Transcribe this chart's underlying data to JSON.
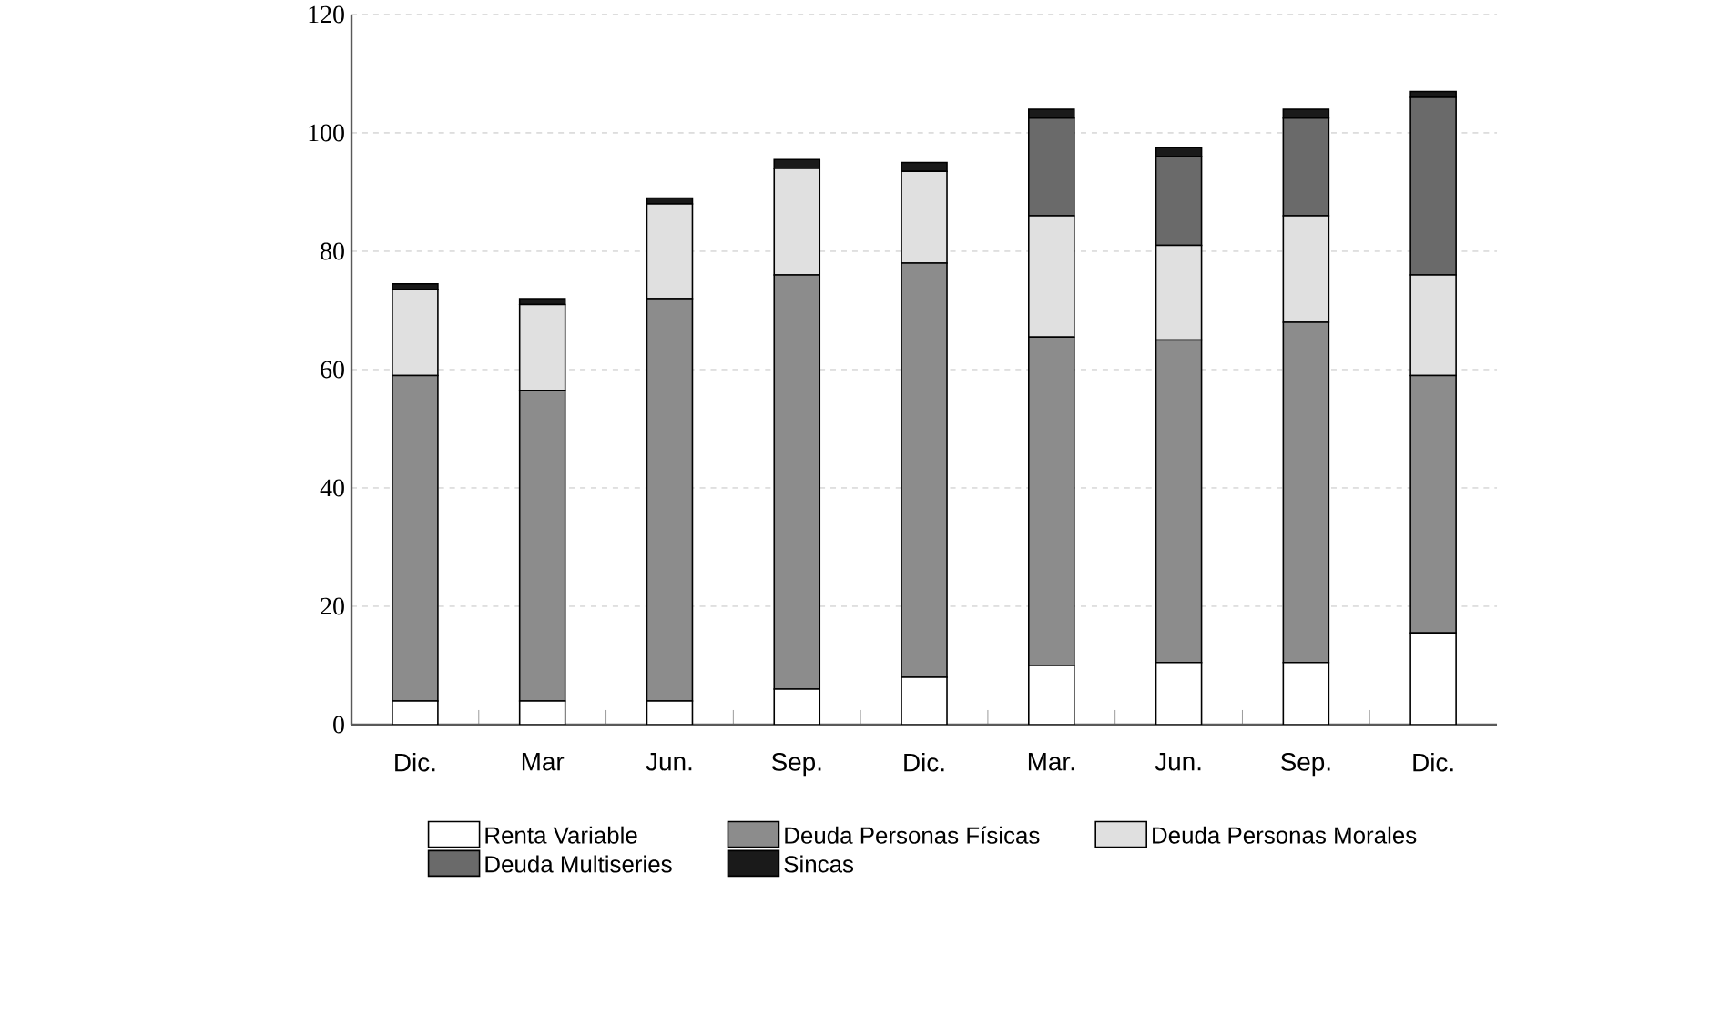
{
  "chart_data": {
    "type": "bar",
    "stacked": true,
    "categories": [
      "Dic.",
      "Mar",
      "Jun.",
      "Sep.",
      "Dic.",
      "Mar.",
      "Jun.",
      "Sep.",
      "Dic."
    ],
    "series": [
      {
        "name": "Renta Variable",
        "color": "#ffffff",
        "values": [
          4,
          4,
          4,
          6,
          8,
          10,
          10.5,
          10.5,
          15.5
        ]
      },
      {
        "name": "Deuda Personas Físicas",
        "color": "#8c8c8c",
        "values": [
          55,
          52.5,
          68,
          70,
          70,
          55.5,
          54.5,
          57.5,
          43.5
        ]
      },
      {
        "name": "Deuda Personas Morales",
        "color": "#e0e0e0",
        "values": [
          14.5,
          14.5,
          16,
          18,
          15.5,
          20.5,
          16,
          18,
          17
        ]
      },
      {
        "name": "Deuda Multiseries",
        "color": "#6a6a6a",
        "values": [
          0,
          0,
          0,
          0,
          0,
          16.5,
          15,
          16.5,
          30
        ]
      },
      {
        "name": "Sincas",
        "color": "#1a1a1a",
        "values": [
          1,
          1,
          1,
          1.5,
          1.5,
          1.5,
          1.5,
          1.5,
          1
        ]
      }
    ],
    "ylim": [
      0,
      120
    ],
    "yticks": [
      0,
      20,
      40,
      60,
      80,
      100,
      120
    ],
    "grid": "y",
    "legend": "bottom"
  }
}
